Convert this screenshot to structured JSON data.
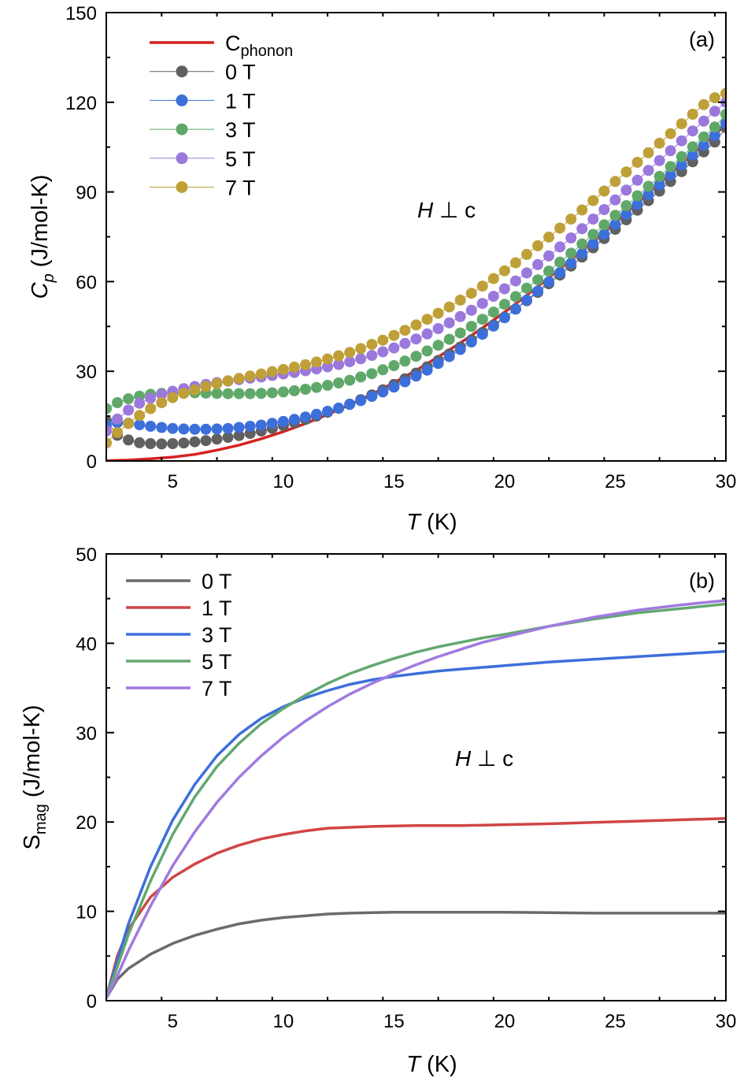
{
  "chart_data": [
    {
      "type": "scatter",
      "panel_label": "(a)",
      "annotation": {
        "var": "H",
        "sym": " ⊥ c"
      },
      "xlabel": {
        "var": "T",
        "rest": " (K)"
      },
      "ylabel": {
        "main": "C",
        "sub": "p",
        "rest": " (J/mol-K)"
      },
      "xlim": [
        2,
        30
      ],
      "ylim": [
        0,
        150
      ],
      "xticks": [
        5,
        10,
        15,
        20,
        25,
        30
      ],
      "yticks": [
        0,
        30,
        60,
        90,
        120,
        150
      ],
      "legend_position": "top-left",
      "grid": false,
      "line": {
        "name": "C",
        "name_sub": "phonon",
        "color": "#d62222",
        "x": [
          2,
          3,
          4,
          5,
          6,
          7,
          8,
          9,
          10,
          11,
          12,
          13,
          14,
          15,
          16,
          17,
          18,
          19,
          20,
          21,
          22,
          23,
          24,
          25,
          26,
          27,
          28,
          29,
          30
        ],
        "y": [
          0.1,
          0.3,
          0.7,
          1.3,
          2.2,
          3.6,
          5.3,
          7.4,
          9.8,
          12.5,
          15.5,
          18.8,
          22.3,
          26.2,
          30.3,
          34.8,
          39.5,
          44.5,
          49.8,
          55.4,
          61.3,
          67.3,
          73.6,
          80.0,
          86.5,
          92.9,
          99.4,
          106.0,
          112.5
        ]
      },
      "series": [
        {
          "name": "0 T",
          "color": "#606060",
          "x": [
            2,
            2.5,
            3,
            3.5,
            4,
            4.5,
            5,
            5.5,
            6,
            6.5,
            7,
            7.5,
            8,
            8.5,
            9,
            9.5,
            10,
            10.5,
            11,
            11.5,
            12,
            12.5,
            13,
            13.5,
            14,
            14.5,
            15,
            15.5,
            16,
            16.5,
            17,
            17.5,
            18,
            18.5,
            19,
            19.5,
            20,
            20.5,
            21,
            21.5,
            22,
            22.5,
            23,
            23.5,
            24,
            24.5,
            25,
            25.5,
            26,
            26.5,
            27,
            27.5,
            28,
            28.5,
            29,
            29.5,
            30
          ],
          "y": [
            13.5,
            8.6,
            7.0,
            6.1,
            5.8,
            5.7,
            5.8,
            6.0,
            6.4,
            6.8,
            7.3,
            7.9,
            8.5,
            9.2,
            10.0,
            10.9,
            11.8,
            12.8,
            13.9,
            15.0,
            16.3,
            17.6,
            19.0,
            20.5,
            22.1,
            23.8,
            25.6,
            27.5,
            29.4,
            31.5,
            33.6,
            35.8,
            38.1,
            40.5,
            43.0,
            45.5,
            48.1,
            50.8,
            53.6,
            56.4,
            59.3,
            62.2,
            65.2,
            68.2,
            71.3,
            74.4,
            77.5,
            80.7,
            83.9,
            87.1,
            90.3,
            93.5,
            96.8,
            100.1,
            103.4,
            106.7,
            111.5
          ]
        },
        {
          "name": "1 T",
          "color": "#3d6fdb",
          "x": [
            2,
            2.5,
            3,
            3.5,
            4,
            4.5,
            5,
            5.5,
            6,
            6.5,
            7,
            7.5,
            8,
            8.5,
            9,
            9.5,
            10,
            10.5,
            11,
            11.5,
            12,
            12.5,
            13,
            13.5,
            14,
            14.5,
            15,
            15.5,
            16,
            16.5,
            17,
            17.5,
            18,
            18.5,
            19,
            19.5,
            20,
            20.5,
            21,
            21.5,
            22,
            22.5,
            23,
            23.5,
            24,
            24.5,
            25,
            25.5,
            26,
            26.5,
            27,
            27.5,
            28,
            28.5,
            29,
            29.5,
            30
          ],
          "y": [
            12.0,
            12.8,
            12.6,
            12.1,
            11.6,
            11.2,
            10.9,
            10.7,
            10.6,
            10.6,
            10.7,
            10.9,
            11.2,
            11.6,
            12.0,
            12.6,
            13.2,
            13.9,
            14.7,
            15.6,
            16.6,
            17.7,
            18.9,
            20.2,
            21.6,
            23.1,
            24.7,
            26.5,
            28.4,
            30.4,
            32.6,
            34.9,
            37.3,
            39.8,
            42.4,
            45.1,
            47.9,
            50.8,
            53.8,
            56.8,
            59.9,
            63.0,
            66.2,
            69.4,
            72.7,
            75.9,
            79.2,
            82.5,
            85.8,
            89.1,
            92.4,
            95.7,
            99.0,
            102.3,
            105.6,
            108.9,
            113.0
          ]
        },
        {
          "name": "3 T",
          "color": "#60a86a",
          "x": [
            2,
            2.5,
            3,
            3.5,
            4,
            4.5,
            5,
            5.5,
            6,
            6.5,
            7,
            7.5,
            8,
            8.5,
            9,
            9.5,
            10,
            10.5,
            11,
            11.5,
            12,
            12.5,
            13,
            13.5,
            14,
            14.5,
            15,
            15.5,
            16,
            16.5,
            17,
            17.5,
            18,
            18.5,
            19,
            19.5,
            20,
            20.5,
            21,
            21.5,
            22,
            22.5,
            23,
            23.5,
            24,
            24.5,
            25,
            25.5,
            26,
            26.5,
            27,
            27.5,
            28,
            28.5,
            29,
            29.5,
            30
          ],
          "y": [
            17.5,
            19.5,
            20.8,
            21.7,
            22.3,
            22.6,
            22.8,
            22.8,
            22.8,
            22.7,
            22.6,
            22.5,
            22.5,
            22.5,
            22.6,
            22.8,
            23.1,
            23.5,
            24.0,
            24.6,
            25.3,
            26.1,
            27.0,
            28.1,
            29.2,
            30.5,
            31.9,
            33.4,
            35.0,
            36.8,
            38.7,
            40.7,
            42.8,
            45.0,
            47.4,
            49.8,
            52.4,
            55.0,
            57.8,
            60.6,
            63.5,
            66.5,
            69.5,
            72.6,
            75.8,
            79.0,
            82.2,
            85.4,
            88.7,
            91.9,
            95.2,
            98.5,
            101.8,
            105.1,
            108.4,
            111.7,
            116.0
          ]
        },
        {
          "name": "5 T",
          "color": "#9b79dc",
          "x": [
            2,
            2.5,
            3,
            3.5,
            4,
            4.5,
            5,
            5.5,
            6,
            6.5,
            7,
            7.5,
            8,
            8.5,
            9,
            9.5,
            10,
            10.5,
            11,
            11.5,
            12,
            12.5,
            13,
            13.5,
            14,
            14.5,
            15,
            15.5,
            16,
            16.5,
            17,
            17.5,
            18,
            18.5,
            19,
            19.5,
            20,
            20.5,
            21,
            21.5,
            22,
            22.5,
            23,
            23.5,
            24,
            24.5,
            25,
            25.5,
            26,
            26.5,
            27,
            27.5,
            28,
            28.5,
            29,
            29.5,
            30
          ],
          "y": [
            10.0,
            14.0,
            17.0,
            19.3,
            21.0,
            22.3,
            23.3,
            24.2,
            24.9,
            25.6,
            26.2,
            26.7,
            27.2,
            27.7,
            28.1,
            28.6,
            29.1,
            29.6,
            30.2,
            30.8,
            31.5,
            32.3,
            33.2,
            34.2,
            35.3,
            36.5,
            37.8,
            39.3,
            40.8,
            42.5,
            44.3,
            46.2,
            48.3,
            50.4,
            52.7,
            55.1,
            57.6,
            60.2,
            62.9,
            65.7,
            68.6,
            71.6,
            74.6,
            77.7,
            80.9,
            84.1,
            87.3,
            90.6,
            93.9,
            97.2,
            100.5,
            103.8,
            107.1,
            110.4,
            113.7,
            117.0,
            120.0
          ]
        },
        {
          "name": "7 T",
          "color": "#bfa038",
          "x": [
            2,
            2.5,
            3,
            3.5,
            4,
            4.5,
            5,
            5.5,
            6,
            6.5,
            7,
            7.5,
            8,
            8.5,
            9,
            9.5,
            10,
            10.5,
            11,
            11.5,
            12,
            12.5,
            13,
            13.5,
            14,
            14.5,
            15,
            15.5,
            16,
            16.5,
            17,
            17.5,
            18,
            18.5,
            19,
            19.5,
            20,
            20.5,
            21,
            21.5,
            22,
            22.5,
            23,
            23.5,
            24,
            24.5,
            25,
            25.5,
            26,
            26.5,
            27,
            27.5,
            28,
            28.5,
            29,
            29.5,
            30
          ],
          "y": [
            6.0,
            9.5,
            12.5,
            15.2,
            17.5,
            19.5,
            21.2,
            22.6,
            23.8,
            24.9,
            25.9,
            26.8,
            27.6,
            28.4,
            29.1,
            29.9,
            30.6,
            31.4,
            32.2,
            33.1,
            34.1,
            35.2,
            36.3,
            37.6,
            39.0,
            40.4,
            42.0,
            43.7,
            45.5,
            47.4,
            49.4,
            51.5,
            53.8,
            56.1,
            58.5,
            61.0,
            63.6,
            66.3,
            69.1,
            72.0,
            74.9,
            77.9,
            80.9,
            84.0,
            87.1,
            90.3,
            93.5,
            96.7,
            99.9,
            103.1,
            106.3,
            109.5,
            112.8,
            116.0,
            119.2,
            121.5,
            123.0
          ]
        }
      ]
    },
    {
      "type": "line",
      "panel_label": "(b)",
      "annotation": {
        "var": "H",
        "sym": " ⊥ c"
      },
      "xlabel": {
        "var": "T",
        "rest": " (K)"
      },
      "ylabel": {
        "main": "S",
        "sub": "mag",
        "rest": " (J/mol-K)"
      },
      "xlim": [
        2,
        30
      ],
      "ylim": [
        0,
        50
      ],
      "xticks": [
        5,
        10,
        15,
        20,
        25,
        30
      ],
      "yticks": [
        0,
        10,
        20,
        30,
        40,
        50
      ],
      "legend_position": "top-left",
      "grid": false,
      "series": [
        {
          "name": "0 T",
          "color": "#6b6b6b",
          "x": [
            2,
            2.5,
            3,
            4,
            5,
            6,
            7,
            8,
            9,
            10,
            11,
            12,
            13,
            14,
            15,
            16,
            17,
            18,
            19,
            20,
            22,
            24,
            26,
            28,
            30
          ],
          "y": [
            0.3,
            2.4,
            3.6,
            5.2,
            6.4,
            7.3,
            8.0,
            8.6,
            9.0,
            9.3,
            9.5,
            9.7,
            9.8,
            9.85,
            9.9,
            9.9,
            9.9,
            9.9,
            9.9,
            9.9,
            9.85,
            9.8,
            9.8,
            9.8,
            9.8
          ]
        },
        {
          "name": "1 T",
          "color": "#d04545",
          "x": [
            2,
            2.5,
            3,
            4,
            5,
            6,
            7,
            8,
            9,
            10,
            11,
            12,
            13,
            14,
            15,
            16,
            17,
            18,
            19,
            20,
            22,
            24,
            26,
            28,
            30
          ],
          "y": [
            0.3,
            5.0,
            8.0,
            11.6,
            13.8,
            15.3,
            16.5,
            17.4,
            18.1,
            18.6,
            19.0,
            19.3,
            19.4,
            19.5,
            19.55,
            19.6,
            19.6,
            19.6,
            19.65,
            19.7,
            19.8,
            19.95,
            20.1,
            20.25,
            20.4
          ]
        },
        {
          "name": "3 T",
          "color": "#3d6fdb",
          "x": [
            2,
            2.5,
            3,
            4,
            5,
            6,
            7,
            8,
            9,
            10,
            11,
            12,
            13,
            14,
            15,
            16,
            17,
            18,
            19,
            20,
            22,
            24,
            26,
            28,
            30
          ],
          "y": [
            0.3,
            4.5,
            8.6,
            15.0,
            20.2,
            24.2,
            27.4,
            29.8,
            31.6,
            32.9,
            33.9,
            34.7,
            35.4,
            35.9,
            36.3,
            36.6,
            36.9,
            37.1,
            37.3,
            37.5,
            37.9,
            38.2,
            38.5,
            38.8,
            39.1
          ]
        },
        {
          "name": "5 T",
          "color": "#63a870",
          "x": [
            2,
            2.5,
            3,
            4,
            5,
            6,
            7,
            8,
            9,
            10,
            11,
            12,
            13,
            14,
            15,
            16,
            17,
            18,
            19,
            20,
            22,
            24,
            26,
            28,
            30
          ],
          "y": [
            0.3,
            3.8,
            7.4,
            13.4,
            18.6,
            22.8,
            26.2,
            28.8,
            31.0,
            32.7,
            34.2,
            35.5,
            36.6,
            37.5,
            38.3,
            39.0,
            39.6,
            40.1,
            40.6,
            41.0,
            41.9,
            42.7,
            43.4,
            43.9,
            44.4
          ]
        },
        {
          "name": "7 T",
          "color": "#a07ae0",
          "x": [
            2,
            2.5,
            3,
            4,
            5,
            6,
            7,
            8,
            9,
            10,
            11,
            12,
            13,
            14,
            15,
            16,
            17,
            18,
            19,
            20,
            22,
            24,
            26,
            28,
            30
          ],
          "y": [
            0.3,
            2.8,
            5.6,
            10.6,
            15.1,
            18.9,
            22.2,
            25.0,
            27.4,
            29.5,
            31.3,
            32.9,
            34.3,
            35.5,
            36.6,
            37.6,
            38.5,
            39.3,
            40.1,
            40.7,
            41.9,
            42.9,
            43.7,
            44.3,
            44.8
          ]
        }
      ]
    }
  ]
}
